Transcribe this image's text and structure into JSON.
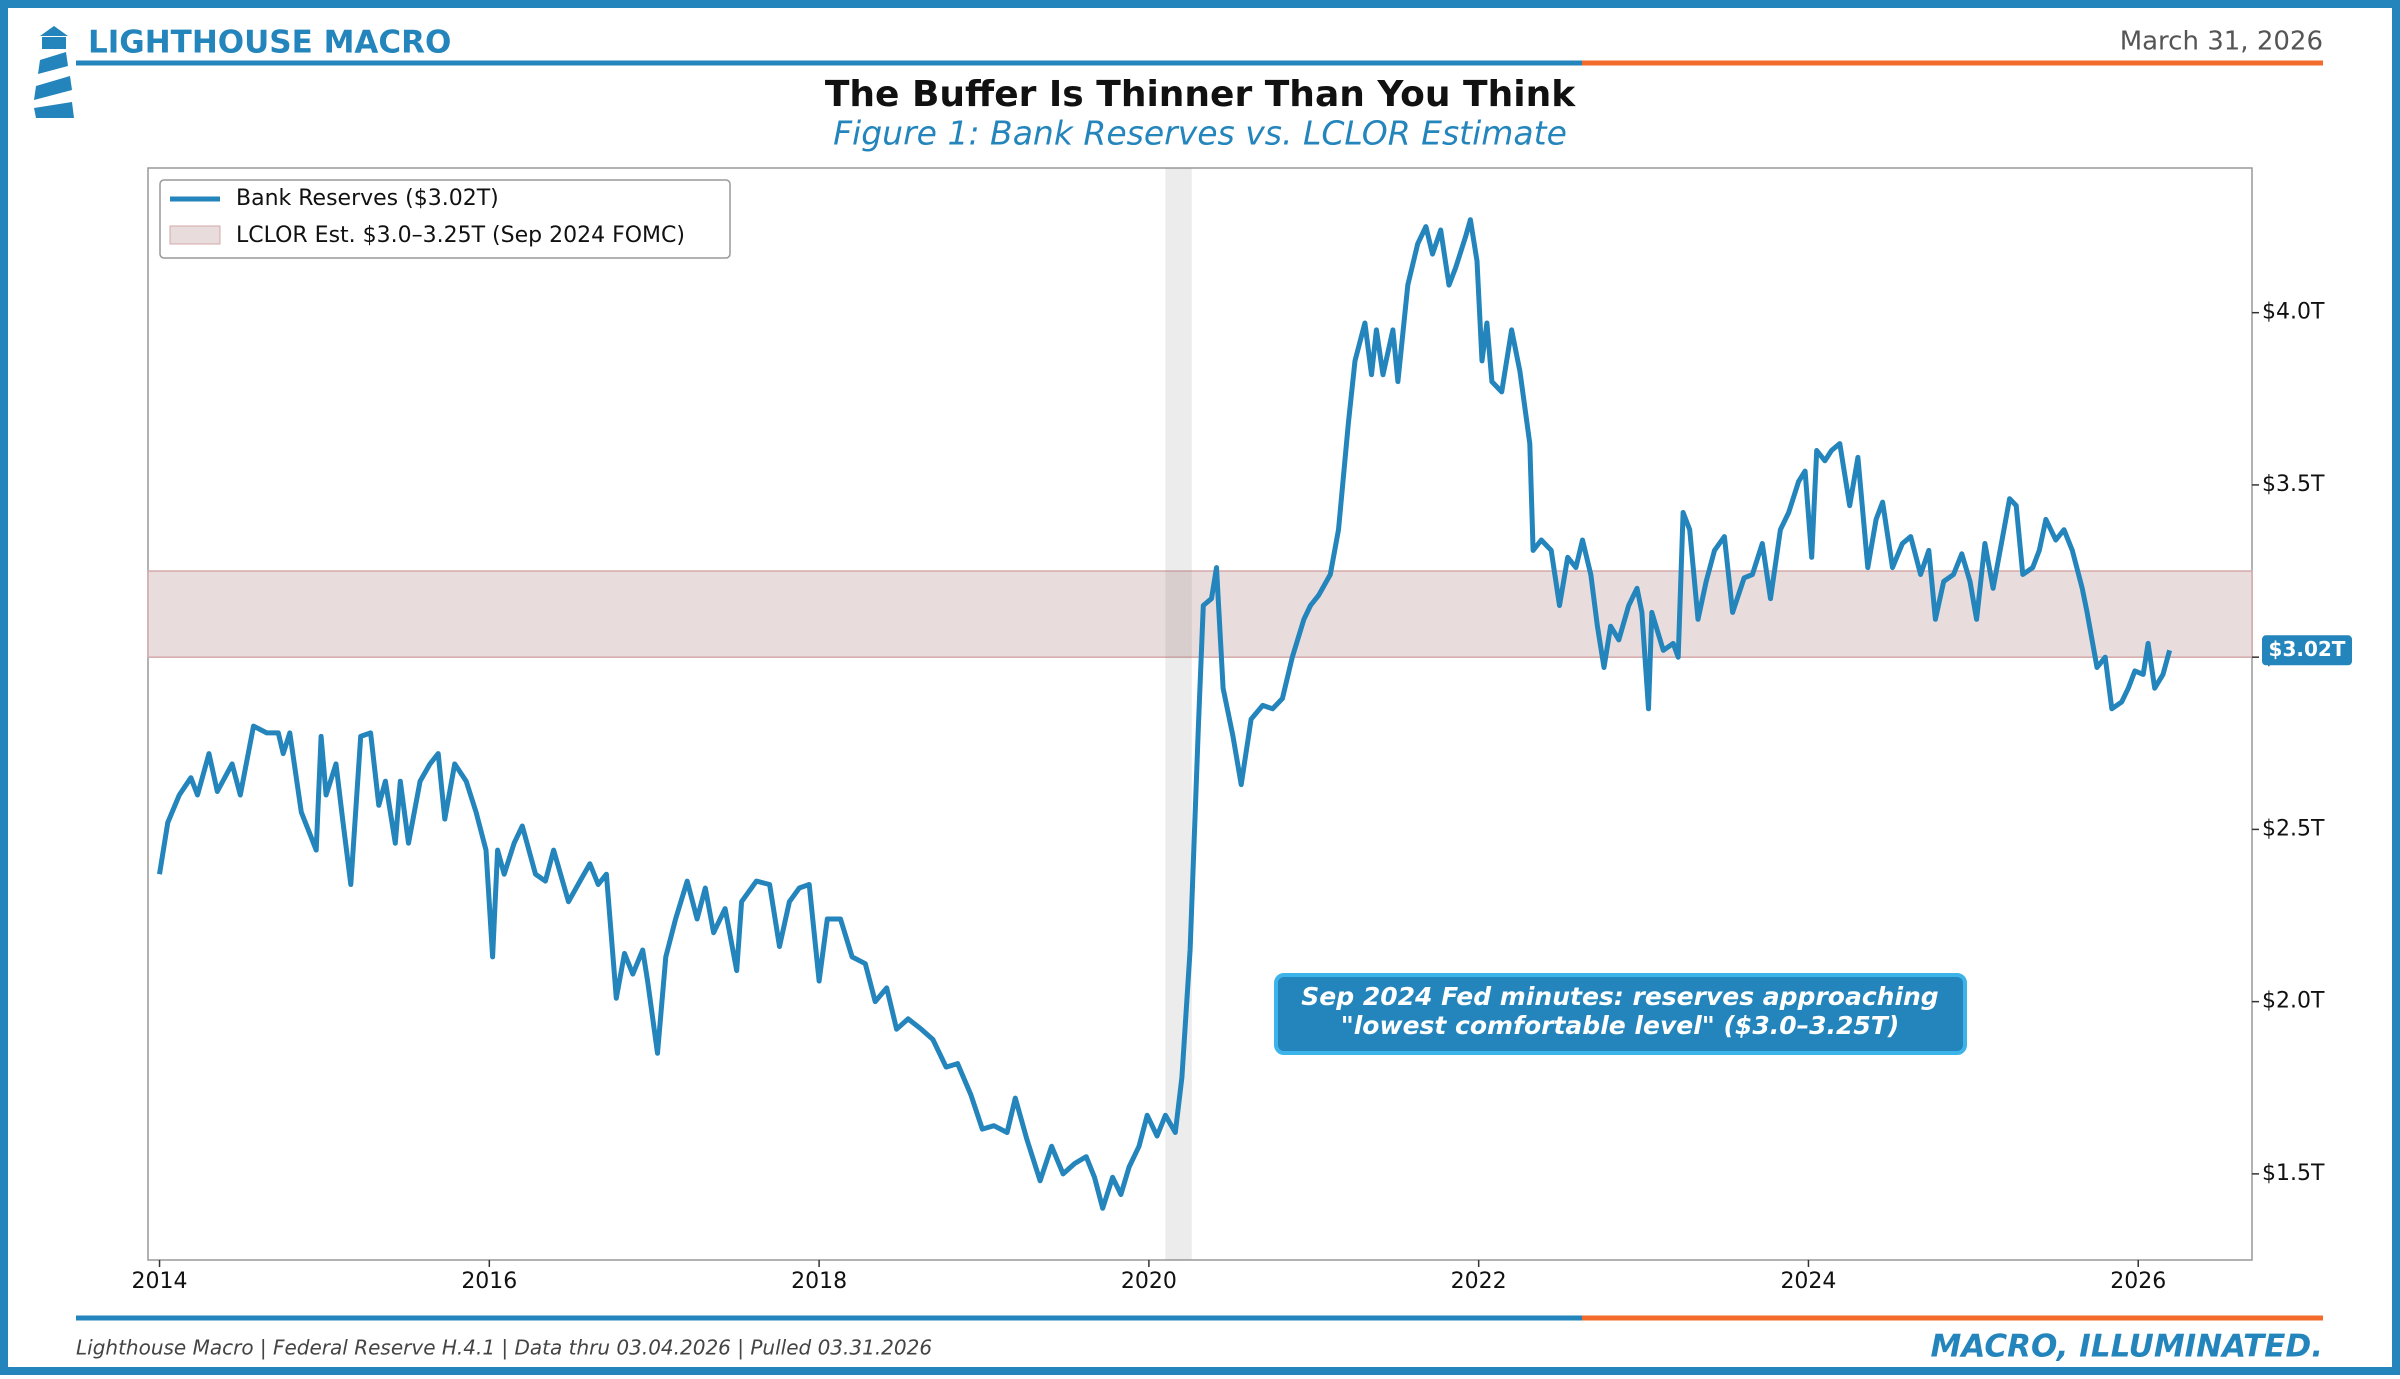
{
  "brand": "LIGHTHOUSE MACRO",
  "date": "March 31, 2026",
  "footer": {
    "source": "Lighthouse Macro | Federal Reserve H.4.1 | Data thru 03.04.2026 | Pulled 03.31.2026",
    "tagline": "MACRO, ILLUMINATED."
  },
  "chart_data": {
    "type": "line",
    "title": "The Buffer Is Thinner Than You Think",
    "subtitle": "Figure 1: Bank Reserves vs. LCLOR Estimate",
    "x": [
      2014.0,
      2014.05,
      2014.12,
      2014.19,
      2014.23,
      2014.3,
      2014.35,
      2014.44,
      2014.49,
      2014.57,
      2014.65,
      2014.72,
      2014.75,
      2014.79,
      2014.86,
      2014.95,
      2014.98,
      2015.01,
      2015.07,
      2015.11,
      2015.16,
      2015.22,
      2015.28,
      2015.33,
      2015.37,
      2015.43,
      2015.46,
      2015.51,
      2015.58,
      2015.64,
      2015.69,
      2015.73,
      2015.79,
      2015.86,
      2015.92,
      2015.98,
      2016.02,
      2016.05,
      2016.09,
      2016.15,
      2016.2,
      2016.28,
      2016.34,
      2016.39,
      2016.48,
      2016.55,
      2016.61,
      2016.66,
      2016.71,
      2016.77,
      2016.82,
      2016.87,
      2016.93,
      2016.96,
      2017.02,
      2017.07,
      2017.13,
      2017.2,
      2017.26,
      2017.31,
      2017.36,
      2017.43,
      2017.5,
      2017.53,
      2017.62,
      2017.7,
      2017.76,
      2017.82,
      2017.88,
      2017.94,
      2018.0,
      2018.05,
      2018.13,
      2018.2,
      2018.28,
      2018.34,
      2018.41,
      2018.47,
      2018.54,
      2018.62,
      2018.69,
      2018.77,
      2018.84,
      2018.92,
      2018.99,
      2019.06,
      2019.14,
      2019.19,
      2019.26,
      2019.34,
      2019.41,
      2019.48,
      2019.55,
      2019.62,
      2019.67,
      2019.72,
      2019.78,
      2019.83,
      2019.88,
      2019.94,
      2019.99,
      2020.05,
      2020.1,
      2020.16,
      2020.2,
      2020.25,
      2020.3,
      2020.33,
      2020.38,
      2020.41,
      2020.45,
      2020.51,
      2020.56,
      2020.62,
      2020.69,
      2020.75,
      2020.81,
      2020.87,
      2020.94,
      2020.98,
      2021.03,
      2021.1,
      2021.15,
      2021.21,
      2021.25,
      2021.31,
      2021.35,
      2021.38,
      2021.42,
      2021.48,
      2021.51,
      2021.57,
      2021.63,
      2021.68,
      2021.72,
      2021.77,
      2021.82,
      2021.86,
      2021.92,
      2021.95,
      2021.99,
      2022.02,
      2022.05,
      2022.08,
      2022.14,
      2022.2,
      2022.25,
      2022.31,
      2022.33,
      2022.38,
      2022.44,
      2022.49,
      2022.54,
      2022.59,
      2022.63,
      2022.68,
      2022.72,
      2022.76,
      2022.8,
      2022.85,
      2022.91,
      2022.96,
      2022.99,
      2023.03,
      2023.05,
      2023.12,
      2023.18,
      2023.21,
      2023.24,
      2023.28,
      2023.33,
      2023.38,
      2023.43,
      2023.49,
      2023.54,
      2023.61,
      2023.66,
      2023.72,
      2023.77,
      2023.83,
      2023.88,
      2023.94,
      2023.98,
      2024.02,
      2024.05,
      2024.1,
      2024.14,
      2024.19,
      2024.25,
      2024.3,
      2024.36,
      2024.41,
      2024.45,
      2024.51,
      2024.57,
      2024.62,
      2024.68,
      2024.73,
      2024.77,
      2024.82,
      2024.88,
      2024.93,
      2024.98,
      2025.02,
      2025.07,
      2025.12,
      2025.17,
      2025.22,
      2025.26,
      2025.3,
      2025.36,
      2025.4,
      2025.44,
      2025.5,
      2025.55,
      2025.6,
      2025.66,
      2025.69,
      2025.75,
      2025.8,
      2025.84,
      2025.9,
      2025.94,
      2025.98,
      2026.03,
      2026.06,
      2026.1,
      2026.15,
      2026.19
    ],
    "series": [
      {
        "name": "Bank Reserves ($3.02T)",
        "color": "#2385bb",
        "values": [
          2.37,
          2.52,
          2.6,
          2.65,
          2.6,
          2.72,
          2.61,
          2.69,
          2.6,
          2.8,
          2.78,
          2.78,
          2.72,
          2.78,
          2.55,
          2.44,
          2.77,
          2.6,
          2.69,
          2.53,
          2.34,
          2.77,
          2.78,
          2.57,
          2.64,
          2.46,
          2.64,
          2.46,
          2.64,
          2.69,
          2.72,
          2.53,
          2.69,
          2.64,
          2.55,
          2.44,
          2.13,
          2.44,
          2.37,
          2.46,
          2.51,
          2.37,
          2.35,
          2.44,
          2.29,
          2.35,
          2.4,
          2.34,
          2.37,
          2.01,
          2.14,
          2.08,
          2.15,
          2.06,
          1.85,
          2.13,
          2.24,
          2.35,
          2.24,
          2.33,
          2.2,
          2.27,
          2.09,
          2.29,
          2.35,
          2.34,
          2.16,
          2.29,
          2.33,
          2.34,
          2.06,
          2.24,
          2.24,
          2.13,
          2.11,
          2.0,
          2.04,
          1.92,
          1.95,
          1.92,
          1.89,
          1.81,
          1.82,
          1.73,
          1.63,
          1.64,
          1.62,
          1.72,
          1.6,
          1.48,
          1.58,
          1.5,
          1.53,
          1.55,
          1.49,
          1.4,
          1.49,
          1.44,
          1.52,
          1.58,
          1.67,
          1.61,
          1.67,
          1.62,
          1.78,
          2.15,
          2.8,
          3.15,
          3.17,
          3.26,
          2.91,
          2.77,
          2.63,
          2.82,
          2.86,
          2.85,
          2.88,
          3.0,
          3.11,
          3.15,
          3.18,
          3.24,
          3.37,
          3.68,
          3.86,
          3.97,
          3.82,
          3.95,
          3.82,
          3.95,
          3.8,
          4.08,
          4.2,
          4.25,
          4.17,
          4.24,
          4.08,
          4.13,
          4.22,
          4.27,
          4.15,
          3.86,
          3.97,
          3.8,
          3.77,
          3.95,
          3.83,
          3.62,
          3.31,
          3.34,
          3.31,
          3.15,
          3.29,
          3.26,
          3.34,
          3.24,
          3.09,
          2.97,
          3.09,
          3.05,
          3.15,
          3.2,
          3.13,
          2.85,
          3.13,
          3.02,
          3.04,
          3.0,
          3.42,
          3.37,
          3.11,
          3.22,
          3.31,
          3.35,
          3.13,
          3.23,
          3.24,
          3.33,
          3.17,
          3.37,
          3.42,
          3.51,
          3.54,
          3.29,
          3.6,
          3.57,
          3.6,
          3.62,
          3.44,
          3.58,
          3.26,
          3.4,
          3.45,
          3.26,
          3.33,
          3.35,
          3.24,
          3.31,
          3.11,
          3.22,
          3.24,
          3.3,
          3.22,
          3.11,
          3.33,
          3.2,
          3.33,
          3.46,
          3.44,
          3.24,
          3.26,
          3.31,
          3.4,
          3.34,
          3.37,
          3.31,
          3.2,
          3.13,
          2.97,
          3.0,
          2.85,
          2.87,
          2.91,
          2.96,
          2.95,
          3.04,
          2.91,
          2.95,
          3.02
        ]
      }
    ],
    "band": {
      "name": "LCLOR Est. $3.0–3.25T (Sep 2024 FOMC)",
      "color": "#e9dcdc",
      "values": [
        3.0,
        3.25
      ]
    },
    "shade_x": [
      2020.1,
      2020.26
    ],
    "end_label": {
      "value": 3.02,
      "label": "$3.02T"
    },
    "annotation": [
      "Sep 2024 Fed minutes: reserves approaching",
      "\"lowest comfortable level\" ($3.0–3.25T)"
    ],
    "xlim": [
      2013.93,
      2026.69
    ],
    "xticks": [
      2014,
      2016,
      2018,
      2020,
      2022,
      2024,
      2026
    ],
    "ylim": [
      1.25,
      4.42
    ],
    "yticks": [
      {
        "value": 1.5,
        "label": "$1.5T"
      },
      {
        "value": 2.0,
        "label": "$2.0T"
      },
      {
        "value": 2.5,
        "label": "$2.5T"
      },
      {
        "value": 3.0,
        "label": "$3.0T"
      },
      {
        "value": 3.5,
        "label": "$3.5T"
      },
      {
        "value": 4.0,
        "label": "$4.0T"
      }
    ],
    "grid": false,
    "legend": "upper left"
  }
}
